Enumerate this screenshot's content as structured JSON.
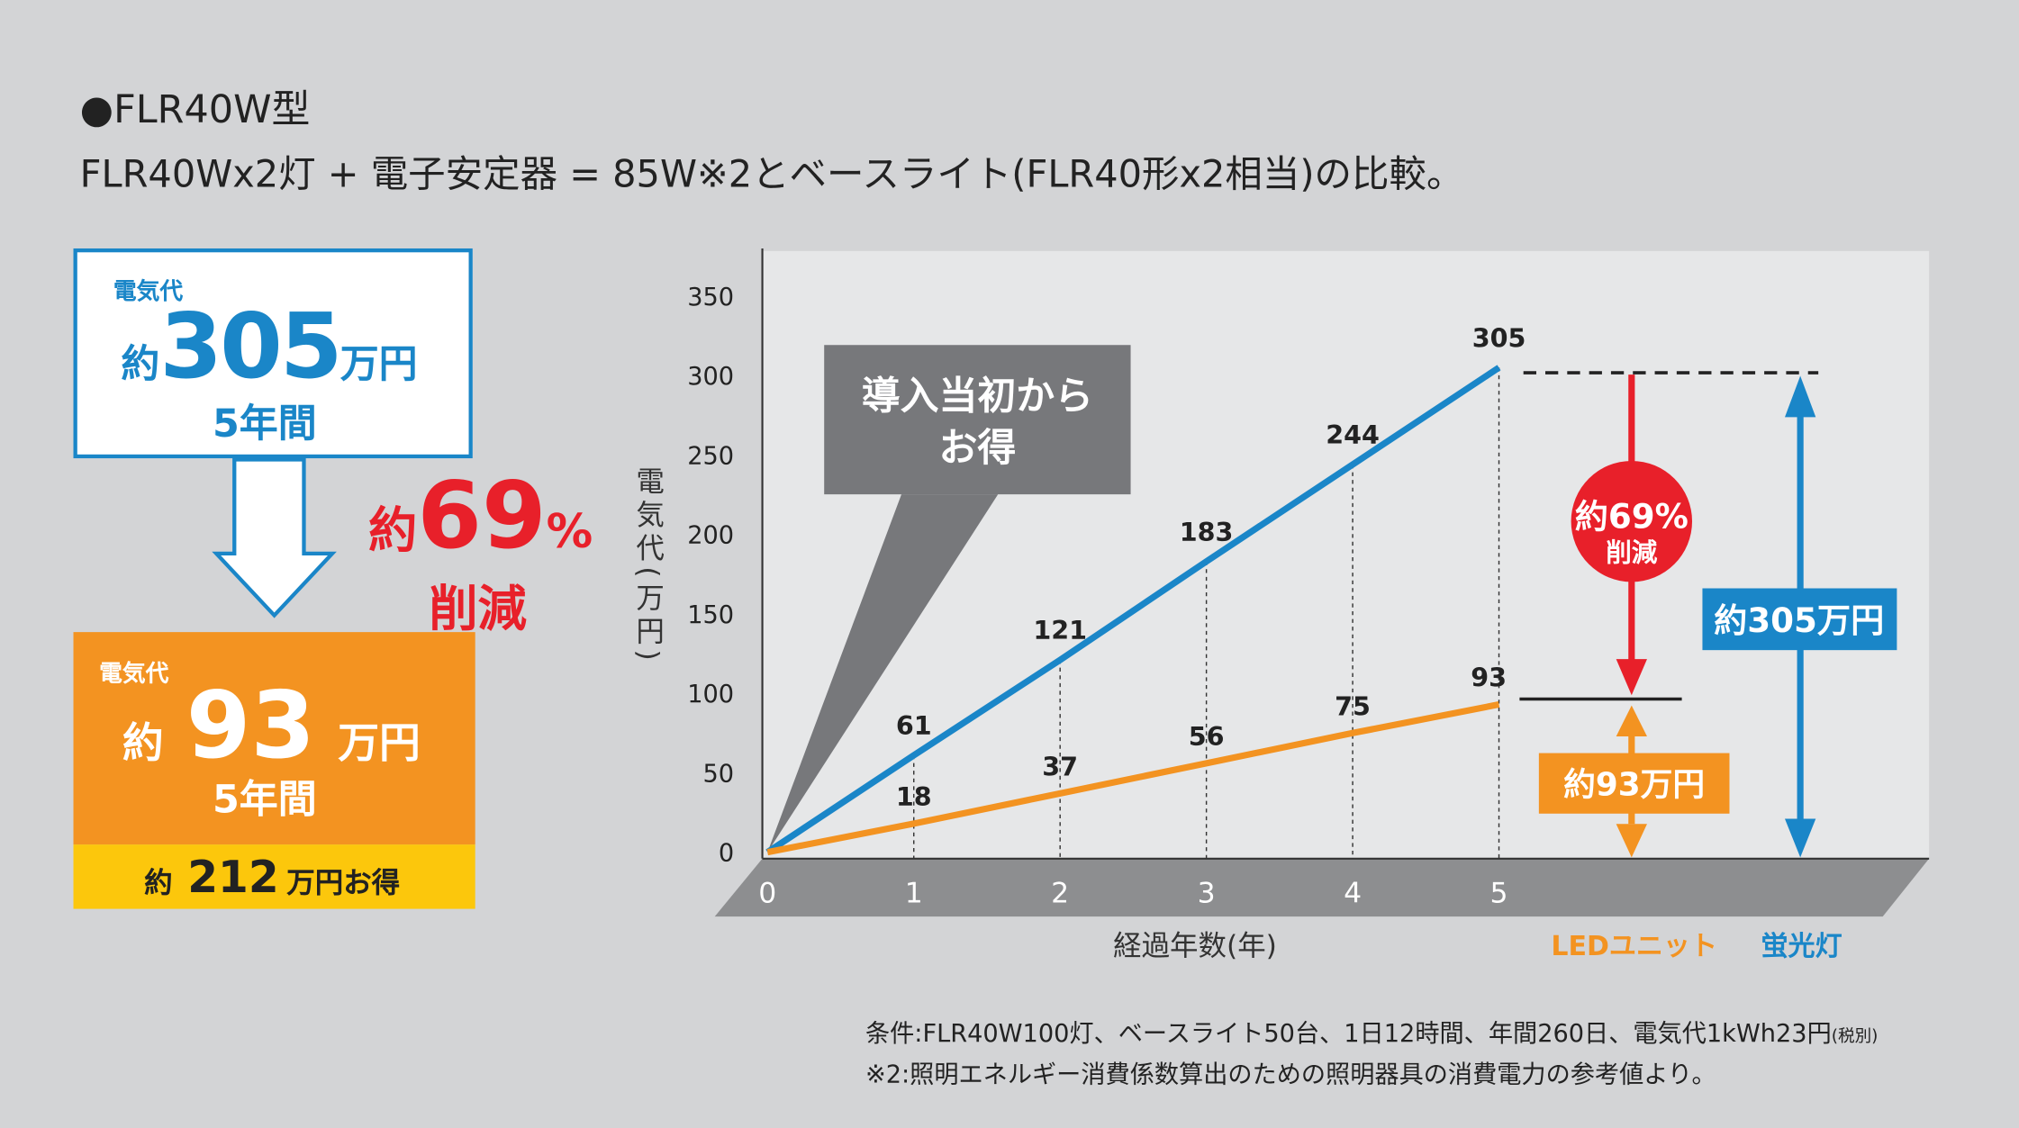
{
  "header": {
    "title": "●FLR40W型",
    "subtitle": "FLR40Wx2灯 + 電子安定器 = 85W※2とベースライト(FLR40形x2相当)の比較。"
  },
  "summary": {
    "before": {
      "label": "電気代",
      "prefix": "約",
      "value": "305",
      "unit": "万円",
      "period": "5年間"
    },
    "reduction": {
      "prefix": "約",
      "value": "69",
      "unit": "%",
      "label": "削減"
    },
    "after": {
      "label": "電気代",
      "prefix": "約",
      "value": "93",
      "unit": "万円",
      "period": "5年間"
    },
    "savings": {
      "prefix": "約",
      "value": "212",
      "unit": "万円お得"
    }
  },
  "colors": {
    "fluorescent": "#1a86c8",
    "led": "#f39321",
    "reduction": "#e8202a",
    "savings": "#fcc70c",
    "callout": "#77787b"
  },
  "callout": {
    "line1": "導入当初から",
    "line2": "お得"
  },
  "annotations": {
    "reduction_circle": {
      "prefix": "約",
      "value": "69",
      "unit": "%",
      "label": "削減"
    },
    "led_total": {
      "prefix": "約",
      "value": "93",
      "unit": "万円"
    },
    "fl_total": {
      "prefix": "約",
      "value": "305",
      "unit": "万円"
    }
  },
  "chart_data": {
    "type": "line",
    "xlabel": "経過年数(年)",
    "ylabel": "電気代(万円)",
    "x": [
      0,
      1,
      2,
      3,
      4,
      5
    ],
    "xlim": [
      0,
      5
    ],
    "ylim": [
      0,
      350
    ],
    "yticks": [
      0,
      50,
      100,
      150,
      200,
      250,
      300,
      350
    ],
    "series": [
      {
        "name": "蛍光灯",
        "color": "#1a86c8",
        "values": [
          0,
          61,
          121,
          183,
          244,
          305
        ]
      },
      {
        "name": "LEDユニット",
        "color": "#f39321",
        "values": [
          0,
          18,
          37,
          56,
          75,
          93
        ]
      }
    ],
    "legend_placement": "bottom-right"
  },
  "footer": {
    "conditions": "条件:FLR40W100灯、ベースライト50台、1日12時間、年間260日、電気代1kWh23円",
    "tax_note": "(税別)",
    "note2": "※2:照明エネルギー消費係数算出のための照明器具の消費電力の参考値より。"
  }
}
